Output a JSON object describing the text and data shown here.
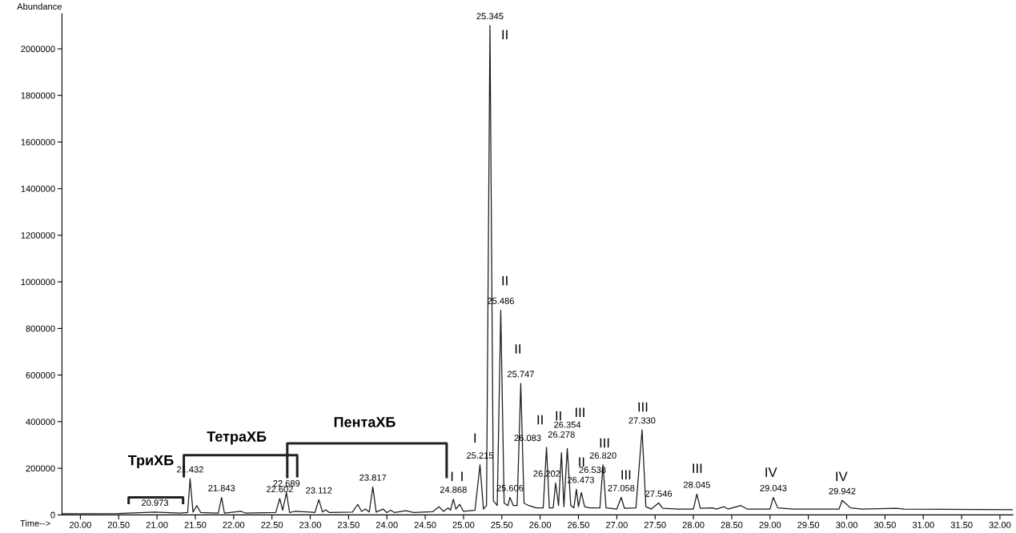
{
  "chart_data": {
    "type": "line",
    "xlabel": "Time-->",
    "ylabel": "Abundance",
    "xlim": [
      19.76,
      32.17
    ],
    "ylim": [
      0,
      2150000
    ],
    "xticks": [
      {
        "value": 20,
        "label": "20.00"
      },
      {
        "value": 20.5,
        "label": "20.50"
      },
      {
        "value": 21,
        "label": "21.00"
      },
      {
        "value": 21.5,
        "label": "21.50"
      },
      {
        "value": 22,
        "label": "22.00"
      },
      {
        "value": 22.5,
        "label": "22.50"
      },
      {
        "value": 23,
        "label": "23.00"
      },
      {
        "value": 23.5,
        "label": "23.50"
      },
      {
        "value": 24,
        "label": "24.00"
      },
      {
        "value": 24.5,
        "label": "24.50"
      },
      {
        "value": 25,
        "label": "25.00"
      },
      {
        "value": 25.5,
        "label": "25.50"
      },
      {
        "value": 26,
        "label": "26.00"
      },
      {
        "value": 26.5,
        "label": "26.50"
      },
      {
        "value": 27,
        "label": "27.00"
      },
      {
        "value": 27.5,
        "label": "27.50"
      },
      {
        "value": 28,
        "label": "28.00"
      },
      {
        "value": 28.5,
        "label": "28.50"
      },
      {
        "value": 29,
        "label": "29.00"
      },
      {
        "value": 29.5,
        "label": "29.50"
      },
      {
        "value": 30,
        "label": "30.00"
      },
      {
        "value": 30.5,
        "label": "30.50"
      },
      {
        "value": 31,
        "label": "31.00"
      },
      {
        "value": 31.5,
        "label": "31.50"
      },
      {
        "value": 32,
        "label": "32.00"
      }
    ],
    "yticks": [
      0,
      200000,
      400000,
      600000,
      800000,
      1000000,
      1200000,
      1400000,
      1600000,
      1800000,
      2000000
    ],
    "grid": false,
    "marker": "none",
    "line_style": "solid",
    "series": [
      {
        "color": "#1a1a1a",
        "x": [
          19.77,
          20.5,
          20.97,
          21.3,
          21.4,
          21.432,
          21.47,
          21.52,
          21.57,
          21.8,
          21.843,
          21.88,
          22.1,
          22.15,
          22.55,
          22.602,
          22.64,
          22.689,
          22.73,
          22.8,
          23.0,
          23.06,
          23.112,
          23.16,
          23.2,
          23.25,
          23.55,
          23.62,
          23.67,
          23.72,
          23.77,
          23.817,
          23.86,
          23.95,
          24.0,
          24.05,
          24.1,
          24.25,
          24.35,
          24.6,
          24.68,
          24.74,
          24.8,
          24.83,
          24.868,
          24.9,
          24.95,
          25.0,
          25.15,
          25.215,
          25.26,
          25.3,
          25.345,
          25.39,
          25.44,
          25.486,
          25.53,
          25.58,
          25.606,
          25.65,
          25.7,
          25.747,
          25.79,
          25.85,
          25.95,
          26.04,
          26.083,
          26.12,
          26.17,
          26.202,
          26.24,
          26.278,
          26.31,
          26.354,
          26.4,
          26.44,
          26.473,
          26.5,
          26.538,
          26.58,
          26.65,
          26.78,
          26.82,
          26.86,
          27.0,
          27.058,
          27.1,
          27.25,
          27.33,
          27.38,
          27.45,
          27.546,
          27.6,
          27.8,
          28.0,
          28.045,
          28.09,
          28.25,
          28.3,
          28.4,
          28.45,
          28.62,
          28.7,
          29.0,
          29.043,
          29.1,
          29.3,
          29.9,
          29.942,
          30.05,
          30.2,
          30.65,
          30.75,
          32.17
        ],
        "values": [
          5000,
          6000,
          12000,
          8000,
          10000,
          155000,
          12000,
          40000,
          10000,
          8000,
          75000,
          8000,
          15000,
          8000,
          10000,
          70000,
          20000,
          95000,
          10000,
          15000,
          12000,
          10000,
          65000,
          12000,
          22000,
          10000,
          12000,
          45000,
          15000,
          25000,
          12000,
          120000,
          12000,
          25000,
          10000,
          20000,
          10000,
          18000,
          10000,
          14000,
          35000,
          15000,
          30000,
          20000,
          68000,
          25000,
          45000,
          15000,
          20000,
          215000,
          25000,
          40000,
          2100000,
          60000,
          40000,
          878000,
          50000,
          40000,
          75000,
          40000,
          40000,
          564000,
          50000,
          40000,
          30000,
          30000,
          290000,
          30000,
          30000,
          137000,
          40000,
          267000,
          35000,
          285000,
          40000,
          30000,
          110000,
          35000,
          96000,
          35000,
          30000,
          30000,
          215000,
          30000,
          25000,
          75000,
          28000,
          30000,
          365000,
          35000,
          25000,
          51000,
          28000,
          25000,
          25000,
          89000,
          28000,
          30000,
          25000,
          35000,
          25000,
          40000,
          25000,
          25000,
          75000,
          30000,
          25000,
          25000,
          62000,
          30000,
          25000,
          28000,
          25000,
          22000
        ]
      }
    ],
    "annotations": [
      "ТриХБ",
      "ТетраХБ",
      "ПентаХБ",
      {
        "text": "20.973",
        "x": 20.973,
        "y": 12000
      },
      {
        "text": "21.432",
        "x": 21.432,
        "y": 155000
      },
      {
        "text": "21.843",
        "x": 21.843,
        "y": 75000
      },
      {
        "text": "22.602",
        "x": 22.602,
        "y": 70000
      },
      {
        "text": "22.689",
        "x": 22.689,
        "y": 95000
      },
      {
        "text": "23.112",
        "x": 23.112,
        "y": 65000
      },
      {
        "text": "23.817",
        "x": 23.817,
        "y": 120000
      },
      {
        "text": "24.868",
        "x": 24.868,
        "y": 68000
      },
      {
        "text": "25.215",
        "x": 25.215,
        "y": 215000
      },
      {
        "text": "25.345",
        "x": 25.345,
        "y": 2100000
      },
      {
        "text": "25.486",
        "x": 25.486,
        "y": 878000
      },
      {
        "text": "25.606",
        "x": 25.606,
        "y": 75000
      },
      {
        "text": "25.747",
        "x": 25.747,
        "y": 564000
      },
      {
        "text": "26.083",
        "x": 26.083,
        "y": 290000
      },
      {
        "text": "26.202",
        "x": 26.202,
        "y": 137000
      },
      {
        "text": "26.278",
        "x": 26.278,
        "y": 267000
      },
      {
        "text": "26.354",
        "x": 26.354,
        "y": 285000
      },
      {
        "text": "26.473",
        "x": 26.473,
        "y": 110000
      },
      {
        "text": "26.538",
        "x": 26.538,
        "y": 96000
      },
      {
        "text": "26.820",
        "x": 26.82,
        "y": 215000
      },
      {
        "text": "27.058",
        "x": 27.058,
        "y": 75000
      },
      {
        "text": "27.330",
        "x": 27.33,
        "y": 365000
      },
      {
        "text": "27.546",
        "x": 27.546,
        "y": 51000
      },
      {
        "text": "28.045",
        "x": 28.045,
        "y": 89000
      },
      {
        "text": "29.043",
        "x": 29.043,
        "y": 75000
      },
      {
        "text": "29.942",
        "x": 29.942,
        "y": 62000
      },
      "I",
      "I",
      "I",
      "II",
      "II",
      "II",
      "II",
      "II",
      "III",
      "II",
      "III",
      "III",
      "III",
      "III",
      "IV",
      "IV"
    ]
  }
}
